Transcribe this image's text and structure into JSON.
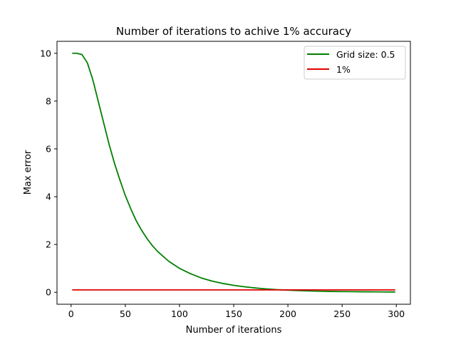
{
  "chart_data": {
    "type": "line",
    "title": "Number of iterations to achive 1% accuracy",
    "xlabel": "Number of iterations",
    "ylabel": "Max error",
    "xlim": [
      -13,
      313
    ],
    "ylim": [
      -0.5,
      10.5
    ],
    "xticks": [
      0,
      50,
      100,
      150,
      200,
      250,
      300
    ],
    "yticks": [
      0,
      2,
      4,
      6,
      8,
      10
    ],
    "grid": false,
    "legend_position": "upper right",
    "series": [
      {
        "name": "Grid size: 0.5",
        "color": "#008000",
        "x": [
          1,
          5,
          10,
          15,
          20,
          25,
          30,
          35,
          40,
          45,
          50,
          55,
          60,
          65,
          70,
          75,
          80,
          90,
          100,
          110,
          120,
          130,
          140,
          150,
          160,
          170,
          180,
          190,
          200,
          210,
          220,
          230,
          240,
          250,
          260,
          270,
          280,
          290,
          299
        ],
        "values": [
          10.0,
          10.0,
          9.95,
          9.6,
          8.9,
          8.0,
          7.1,
          6.2,
          5.4,
          4.7,
          4.05,
          3.5,
          3.0,
          2.6,
          2.25,
          1.95,
          1.7,
          1.3,
          1.0,
          0.78,
          0.6,
          0.47,
          0.37,
          0.29,
          0.23,
          0.18,
          0.14,
          0.11,
          0.09,
          0.07,
          0.055,
          0.045,
          0.035,
          0.03,
          0.025,
          0.02,
          0.017,
          0.014,
          0.012
        ]
      },
      {
        "name": "1%",
        "color": "#e00000",
        "x": [
          1,
          299
        ],
        "values": [
          0.1,
          0.1
        ]
      }
    ]
  }
}
